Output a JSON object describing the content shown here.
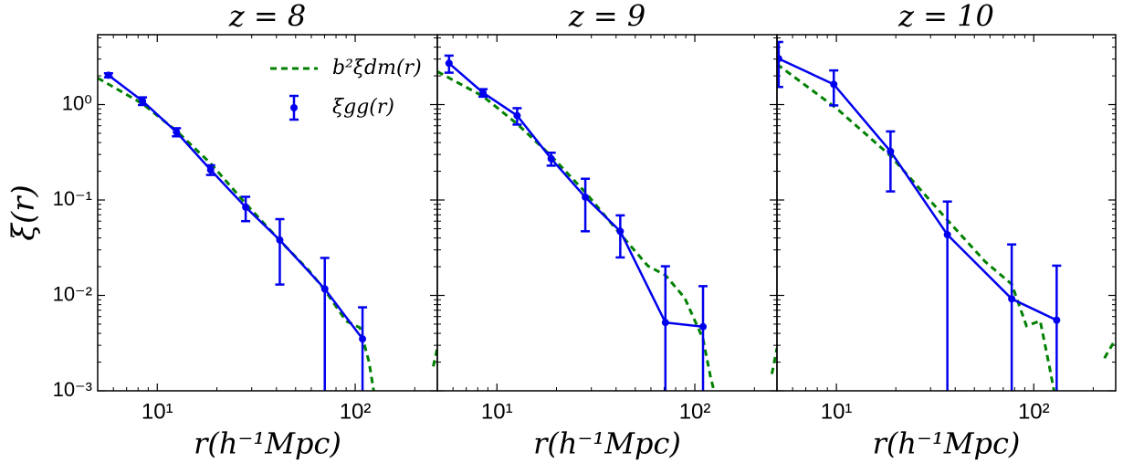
{
  "chart_data": [
    {
      "type": "line",
      "title": "z = 8",
      "xlabel": "r(h⁻¹Mpc)",
      "ylabel": "ξ(r)",
      "xscale": "log",
      "yscale": "log",
      "legend": "upper right",
      "xlim": [
        5,
        260
      ],
      "ylim": [
        0.001,
        5.4
      ],
      "xticks": [
        {
          "value": 10,
          "label": "10¹"
        },
        {
          "value": 100,
          "label": "10²"
        }
      ],
      "yticks": [
        {
          "value": 0.001,
          "label": "10⁻³"
        },
        {
          "value": 0.01,
          "label": "10⁻²"
        },
        {
          "value": 0.1,
          "label": "10⁻¹"
        },
        {
          "value": 1,
          "label": "10⁰"
        }
      ],
      "series": [
        {
          "name": "b²ξdm(r)",
          "color": "#008000",
          "style": "dashed",
          "x": [
            5,
            8.42,
            12.5,
            18.6,
            28.0,
            41.6,
            58.5,
            70.2,
            89.8,
            105.5,
            117.5,
            124,
            200,
            248,
            260
          ],
          "values": [
            1.9,
            1.02,
            0.53,
            0.242,
            0.0915,
            0.0376,
            0.0181,
            0.0114,
            0.0054,
            0.0046,
            0.002,
            0.001,
            null,
            0.0018,
            0.0028
          ]
        },
        {
          "name": "ξgg(r)",
          "color": "#0000ee",
          "style": "solid",
          "marker": "o",
          "x": [
            5.67,
            8.42,
            12.5,
            18.6,
            27.97,
            41.6,
            70.2,
            108.9
          ],
          "values": [
            2.03,
            1.09,
            0.515,
            0.207,
            0.084,
            0.038,
            0.0117,
            0.0035
          ],
          "errors": [
            0.1,
            0.1,
            0.05,
            0.024,
            0.024,
            0.025,
            0.013,
            0.004
          ]
        }
      ]
    },
    {
      "type": "line",
      "title": "z = 9",
      "xlabel": "r(h⁻¹Mpc)",
      "xscale": "log",
      "yscale": "log",
      "xlim": [
        5,
        260
      ],
      "ylim": [
        0.001,
        5.4
      ],
      "xticks": [
        {
          "value": 10,
          "label": "10¹"
        },
        {
          "value": 100,
          "label": "10²"
        }
      ],
      "yticks": [
        0.001,
        0.01,
        0.1,
        1
      ],
      "series": [
        {
          "color": "#008000",
          "style": "dashed",
          "x": [
            5,
            8.51,
            12.65,
            18.8,
            28.0,
            42.0,
            57.9,
            71.0,
            88.9,
            110,
            120,
            125,
            200,
            245,
            260
          ],
          "values": [
            2.22,
            1.22,
            0.628,
            0.29,
            0.12,
            0.044,
            0.0204,
            0.0163,
            0.0094,
            0.0035,
            0.0014,
            0.001,
            null,
            0.0015,
            0.0028
          ]
        },
        {
          "color": "#0000ee",
          "style": "solid",
          "marker": "o",
          "x": [
            5.73,
            8.51,
            12.65,
            18.8,
            27.97,
            42.0,
            71.0,
            110
          ],
          "values": [
            2.71,
            1.33,
            0.767,
            0.271,
            0.107,
            0.047,
            0.0052,
            0.0047
          ],
          "errors": [
            0.55,
            0.12,
            0.15,
            0.042,
            0.06,
            0.022,
            0.015,
            0.0078
          ]
        }
      ]
    },
    {
      "type": "line",
      "title": "z = 10",
      "xlabel": "r(h⁻¹Mpc)",
      "xscale": "log",
      "yscale": "log",
      "xlim": [
        5,
        260
      ],
      "ylim": [
        0.001,
        5.4
      ],
      "xticks": [
        {
          "value": 10,
          "label": "10¹"
        },
        {
          "value": 100,
          "label": "10²"
        }
      ],
      "yticks": [
        0.001,
        0.01,
        0.1,
        1
      ],
      "series": [
        {
          "color": "#008000",
          "style": "dashed",
          "x": [
            5,
            10,
            18.8,
            36.5,
            56.7,
            77.3,
            91.8,
            107.8,
            120,
            126.6,
            200,
            228,
            260
          ],
          "values": [
            2.65,
            0.915,
            0.29,
            0.0617,
            0.0226,
            0.0131,
            0.0048,
            0.0054,
            0.0018,
            0.001,
            null,
            0.0022,
            0.0035
          ]
        },
        {
          "color": "#0000ee",
          "style": "solid",
          "marker": "o",
          "x": [
            5.1,
            9.7,
            18.8,
            36.5,
            77.3,
            130.6
          ],
          "values": [
            3.03,
            1.63,
            0.323,
            0.0433,
            0.0092,
            0.0055
          ],
          "errors": [
            1.5,
            0.65,
            0.2,
            0.053,
            0.025,
            0.015
          ]
        }
      ]
    }
  ]
}
